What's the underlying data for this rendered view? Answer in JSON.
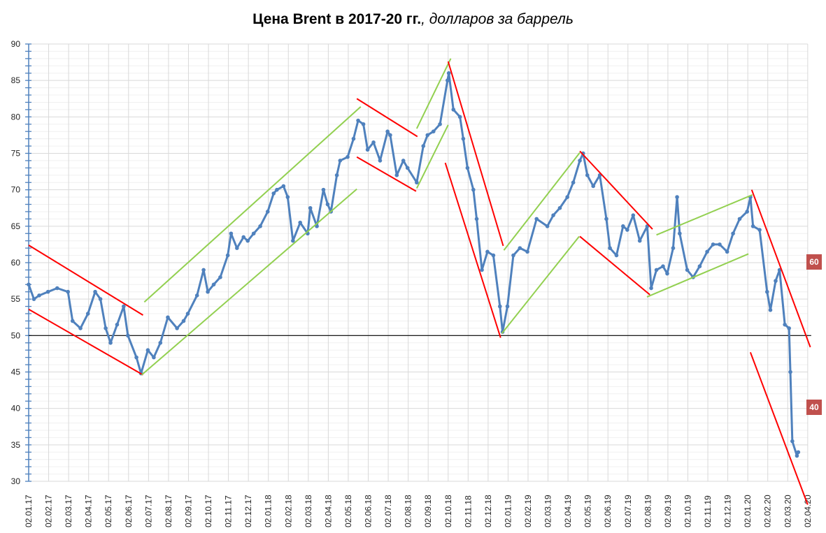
{
  "chart_data": {
    "type": "line",
    "title": "Цена Brent в 2017-20 гг.",
    "subtitle": ", долларов за баррель",
    "xlabel": "",
    "ylabel": "",
    "ylim": [
      30,
      90
    ],
    "y_ticks": [
      30,
      35,
      40,
      45,
      50,
      55,
      60,
      65,
      70,
      75,
      80,
      85,
      90
    ],
    "x_ticks": [
      "02.01.17",
      "02.02.17",
      "02.03.17",
      "02.04.17",
      "02.05.17",
      "02.06.17",
      "02.07.17",
      "02.08.17",
      "02.09.17",
      "02.10.17",
      "02.11.17",
      "02.12.17",
      "02.01.18",
      "02.02.18",
      "02.03.18",
      "02.04.18",
      "02.05.18",
      "02.06.18",
      "02.07.18",
      "02.08.18",
      "02.09.18",
      "02.10.18",
      "02.11.18",
      "02.12.18",
      "02.01.19",
      "02.02.19",
      "02.03.19",
      "02.04.19",
      "02.05.19",
      "02.06.19",
      "02.07.19",
      "02.08.19",
      "02.09.19",
      "02.10.19",
      "02.11.19",
      "02.12.19",
      "02.01.20",
      "02.02.20",
      "02.03.20",
      "02.04.20"
    ],
    "grid": true,
    "series_color": "#4f81bd",
    "series": [
      {
        "points": [
          [
            "02.01.17",
            57
          ],
          [
            "10.01.17",
            55
          ],
          [
            "18.01.17",
            55.5
          ],
          [
            "01.02.17",
            56
          ],
          [
            "15.02.17",
            56.5
          ],
          [
            "01.03.17",
            56
          ],
          [
            "08.03.17",
            52
          ],
          [
            "20.03.17",
            51
          ],
          [
            "01.04.17",
            53
          ],
          [
            "12.04.17",
            56
          ],
          [
            "20.04.17",
            55
          ],
          [
            "28.04.17",
            51
          ],
          [
            "05.05.17",
            49
          ],
          [
            "15.05.17",
            51.5
          ],
          [
            "25.05.17",
            54
          ],
          [
            "01.06.17",
            50
          ],
          [
            "14.06.17",
            47
          ],
          [
            "21.06.17",
            44.8
          ],
          [
            "01.07.17",
            48
          ],
          [
            "10.07.17",
            47
          ],
          [
            "20.07.17",
            49
          ],
          [
            "01.08.17",
            52.5
          ],
          [
            "15.08.17",
            51
          ],
          [
            "25.08.17",
            52
          ],
          [
            "01.09.17",
            53
          ],
          [
            "15.09.17",
            55.5
          ],
          [
            "25.09.17",
            59
          ],
          [
            "01.10.17",
            56
          ],
          [
            "10.10.17",
            57
          ],
          [
            "20.10.17",
            58
          ],
          [
            "01.11.17",
            61
          ],
          [
            "06.11.17",
            64
          ],
          [
            "15.11.17",
            62
          ],
          [
            "25.11.17",
            63.5
          ],
          [
            "01.12.17",
            63
          ],
          [
            "10.12.17",
            64
          ],
          [
            "20.12.17",
            65
          ],
          [
            "01.01.18",
            67
          ],
          [
            "10.01.18",
            69.5
          ],
          [
            "15.01.18",
            70
          ],
          [
            "25.01.18",
            70.5
          ],
          [
            "01.02.18",
            69
          ],
          [
            "09.02.18",
            63
          ],
          [
            "20.02.18",
            65.5
          ],
          [
            "01.03.18",
            64
          ],
          [
            "05.03.18",
            67.5
          ],
          [
            "15.03.18",
            65
          ],
          [
            "25.03.18",
            70
          ],
          [
            "01.04.18",
            68
          ],
          [
            "06.04.18",
            67
          ],
          [
            "15.04.18",
            72
          ],
          [
            "20.04.18",
            74
          ],
          [
            "01.05.18",
            74.5
          ],
          [
            "10.05.18",
            77
          ],
          [
            "17.05.18",
            79.5
          ],
          [
            "25.05.18",
            79
          ],
          [
            "01.06.18",
            75.5
          ],
          [
            "10.06.18",
            76.5
          ],
          [
            "20.06.18",
            74
          ],
          [
            "01.07.18",
            78
          ],
          [
            "05.07.18",
            77.5
          ],
          [
            "15.07.18",
            72
          ],
          [
            "25.07.18",
            74
          ],
          [
            "01.08.18",
            73
          ],
          [
            "15.08.18",
            71
          ],
          [
            "25.08.18",
            76
          ],
          [
            "01.09.18",
            77.5
          ],
          [
            "10.09.18",
            78
          ],
          [
            "20.09.18",
            79
          ],
          [
            "01.10.18",
            85
          ],
          [
            "03.10.18",
            86
          ],
          [
            "10.10.18",
            81
          ],
          [
            "20.10.18",
            80
          ],
          [
            "25.10.18",
            77
          ],
          [
            "01.11.18",
            73
          ],
          [
            "10.11.18",
            70
          ],
          [
            "15.11.18",
            66
          ],
          [
            "23.11.18",
            59
          ],
          [
            "01.12.18",
            61.5
          ],
          [
            "10.12.18",
            61
          ],
          [
            "20.12.18",
            54
          ],
          [
            "24.12.18",
            50.5
          ],
          [
            "01.01.19",
            54
          ],
          [
            "10.01.19",
            61
          ],
          [
            "20.01.19",
            62
          ],
          [
            "01.02.19",
            61.5
          ],
          [
            "15.02.19",
            66
          ],
          [
            "01.03.19",
            65
          ],
          [
            "10.03.19",
            66.5
          ],
          [
            "20.03.19",
            67.5
          ],
          [
            "01.04.19",
            69
          ],
          [
            "10.04.19",
            71
          ],
          [
            "20.04.19",
            74
          ],
          [
            "25.04.19",
            75
          ],
          [
            "01.05.19",
            72
          ],
          [
            "10.05.19",
            70.5
          ],
          [
            "20.05.19",
            72
          ],
          [
            "30.05.19",
            66
          ],
          [
            "05.06.19",
            62
          ],
          [
            "15.06.19",
            61
          ],
          [
            "25.06.19",
            65
          ],
          [
            "01.07.19",
            64.5
          ],
          [
            "10.07.19",
            66.5
          ],
          [
            "20.07.19",
            63
          ],
          [
            "01.08.19",
            65
          ],
          [
            "07.08.19",
            56.5
          ],
          [
            "15.08.19",
            59
          ],
          [
            "25.08.19",
            59.5
          ],
          [
            "01.09.19",
            58.5
          ],
          [
            "10.09.19",
            62
          ],
          [
            "16.09.19",
            69
          ],
          [
            "20.09.19",
            64
          ],
          [
            "01.10.19",
            59
          ],
          [
            "10.10.19",
            58
          ],
          [
            "20.10.19",
            59.5
          ],
          [
            "01.11.19",
            61.5
          ],
          [
            "10.11.19",
            62.5
          ],
          [
            "20.11.19",
            62.5
          ],
          [
            "01.12.19",
            61.5
          ],
          [
            "10.12.19",
            64
          ],
          [
            "20.12.19",
            66
          ],
          [
            "01.01.20",
            67
          ],
          [
            "06.01.20",
            69
          ],
          [
            "10.01.20",
            65
          ],
          [
            "20.01.20",
            64.5
          ],
          [
            "01.02.20",
            56
          ],
          [
            "06.02.20",
            53.5
          ],
          [
            "14.02.20",
            57.5
          ],
          [
            "20.02.20",
            59
          ],
          [
            "28.02.20",
            51.5
          ],
          [
            "04.03.20",
            51
          ],
          [
            "06.03.20",
            45
          ],
          [
            "09.03.20",
            35.5
          ],
          [
            "16.03.20",
            33.5
          ],
          [
            "18.03.20",
            34
          ]
        ]
      }
    ],
    "reference_line": {
      "value": 50,
      "color": "#000000"
    },
    "trend_lines": [
      {
        "color": "#ff0000",
        "from": [
          "02.01.17",
          62.4
        ],
        "to": [
          "24.06.17",
          52.8
        ]
      },
      {
        "color": "#ff0000",
        "from": [
          "02.01.17",
          53.6
        ],
        "to": [
          "24.06.17",
          44.6
        ]
      },
      {
        "color": "#92d050",
        "from": [
          "26.06.17",
          54.6
        ],
        "to": [
          "21.05.18",
          81.4
        ]
      },
      {
        "color": "#92d050",
        "from": [
          "22.06.17",
          44.6
        ],
        "to": [
          "15.05.18",
          70.1
        ]
      },
      {
        "color": "#ff0000",
        "from": [
          "15.05.18",
          82.5
        ],
        "to": [
          "16.08.18",
          77.3
        ]
      },
      {
        "color": "#ff0000",
        "from": [
          "15.05.18",
          74.5
        ],
        "to": [
          "14.08.18",
          69.8
        ]
      },
      {
        "color": "#92d050",
        "from": [
          "15.08.18",
          78.4
        ],
        "to": [
          "06.10.18",
          88.0
        ]
      },
      {
        "color": "#92d050",
        "from": [
          "15.08.18",
          70.2
        ],
        "to": [
          "02.10.18",
          78.9
        ]
      },
      {
        "color": "#ff0000",
        "from": [
          "02.10.18",
          87.6
        ],
        "to": [
          "25.12.18",
          62.3
        ]
      },
      {
        "color": "#ff0000",
        "from": [
          "28.09.18",
          73.7
        ],
        "to": [
          "21.12.18",
          49.7
        ]
      },
      {
        "color": "#92d050",
        "from": [
          "26.12.18",
          61.7
        ],
        "to": [
          "20.04.19",
          75.1
        ]
      },
      {
        "color": "#92d050",
        "from": [
          "23.12.18",
          50.3
        ],
        "to": [
          "19.04.19",
          63.6
        ]
      },
      {
        "color": "#ff0000",
        "from": [
          "20.04.19",
          75.3
        ],
        "to": [
          "09.08.19",
          64.6
        ]
      },
      {
        "color": "#ff0000",
        "from": [
          "20.04.19",
          63.6
        ],
        "to": [
          "05.08.19",
          55.6
        ]
      },
      {
        "color": "#92d050",
        "from": [
          "15.08.19",
          63.8
        ],
        "to": [
          "09.01.20",
          69.3
        ]
      },
      {
        "color": "#92d050",
        "from": [
          "31.07.19",
          55.3
        ],
        "to": [
          "03.01.20",
          61.2
        ]
      },
      {
        "color": "#ff0000",
        "from": [
          "08.01.20",
          70.0
        ],
        "to": [
          "06.04.20",
          48.4
        ]
      },
      {
        "color": "#ff0000",
        "from": [
          "06.01.20",
          47.7
        ],
        "to": [
          "02.04.20",
          26.8
        ]
      }
    ],
    "annotations": [
      {
        "text": "60",
        "value": 60,
        "color": "#c0504d"
      },
      {
        "text": "40",
        "value": 40,
        "color": "#c0504d"
      }
    ]
  }
}
